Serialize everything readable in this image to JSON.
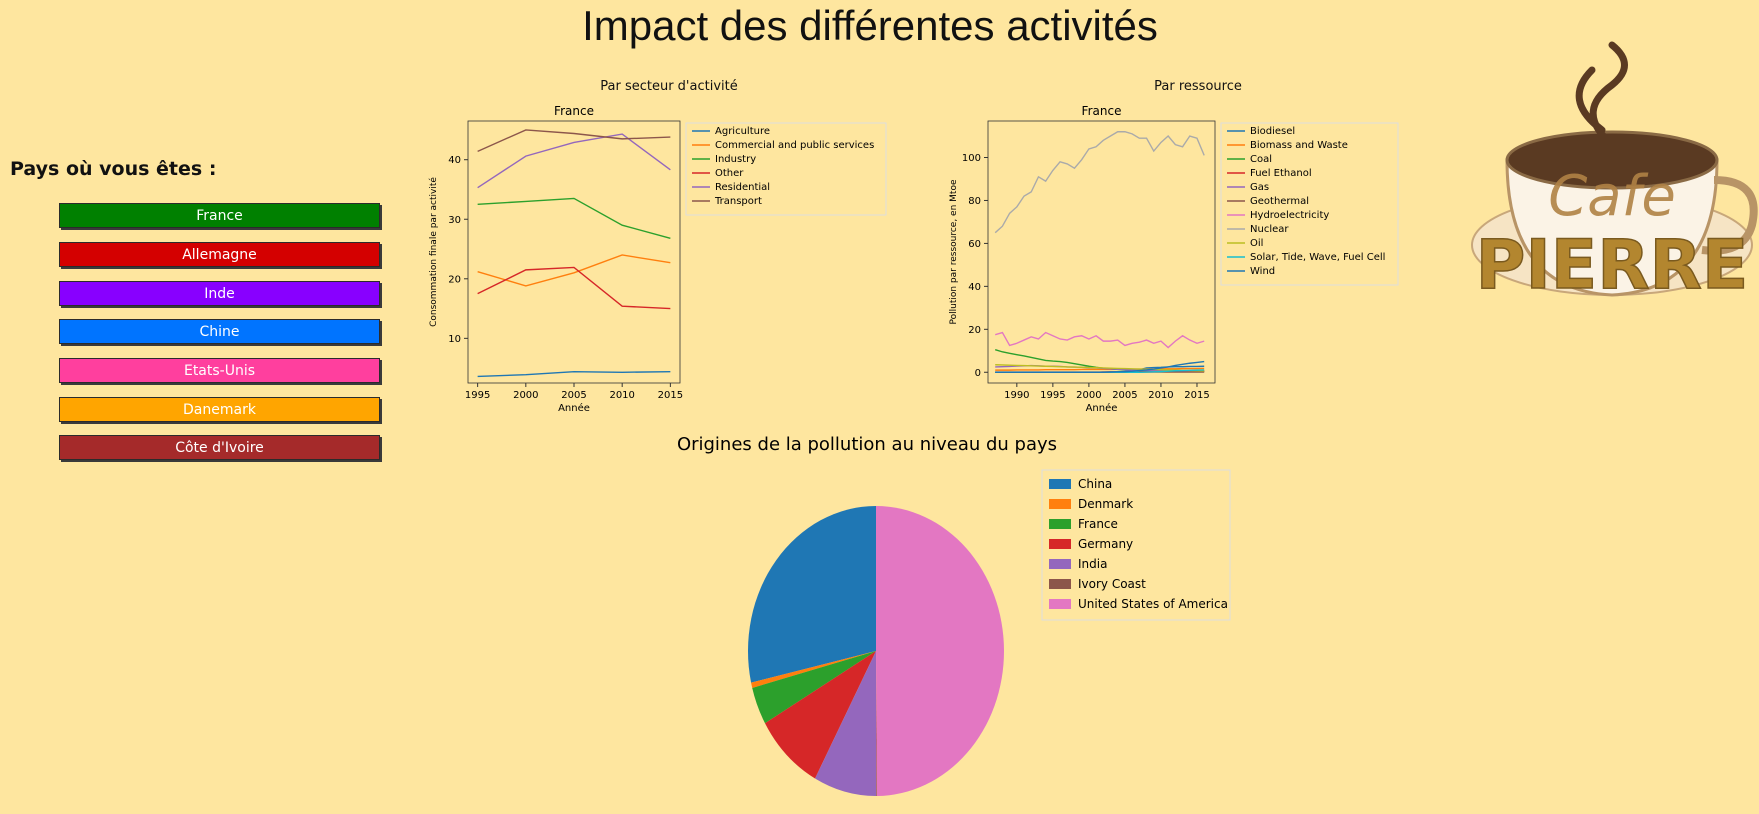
{
  "header": {
    "title": "Impact des différentes activités"
  },
  "sidebar": {
    "label": "Pays où vous êtes :",
    "buttons": [
      {
        "label": "France",
        "color": "#008000"
      },
      {
        "label": "Allemagne",
        "color": "#d40000"
      },
      {
        "label": "Inde",
        "color": "#8800ff"
      },
      {
        "label": "Chine",
        "color": "#0074ff"
      },
      {
        "label": "Etats-Unis",
        "color": "#ff3f9e"
      },
      {
        "label": "Danemark",
        "color": "#ffa500"
      },
      {
        "label": "Côte d'Ivoire",
        "color": "#a52a2a"
      }
    ]
  },
  "panels": {
    "sector_title": "Par secteur d'activité",
    "resource_title": "Par ressource"
  },
  "logo": {
    "text_top": "Cafe",
    "text_bottom": "PIERRE"
  },
  "chart_data": [
    {
      "type": "line",
      "title": "France",
      "xlabel": "Année",
      "ylabel": "Consommation finale par activité",
      "x": [
        1995,
        2000,
        2005,
        2010,
        2015
      ],
      "xlim": [
        1994,
        2016
      ],
      "ylim": [
        2.5,
        46.5
      ],
      "xticks": [
        1995,
        2000,
        2005,
        2010,
        2015
      ],
      "yticks": [
        10,
        20,
        30,
        40
      ],
      "legend": "right-outside",
      "series": [
        {
          "name": "Agriculture",
          "color": "#1f77b4",
          "values": [
            3.6,
            3.9,
            4.4,
            4.3,
            4.4
          ]
        },
        {
          "name": "Commercial and public services",
          "color": "#ff7f0e",
          "values": [
            21.2,
            18.8,
            21.0,
            24.0,
            22.7
          ]
        },
        {
          "name": "Industry",
          "color": "#2ca02c",
          "values": [
            32.5,
            33.0,
            33.5,
            29.0,
            26.8
          ]
        },
        {
          "name": "Other",
          "color": "#d62728",
          "values": [
            17.5,
            21.5,
            21.9,
            15.4,
            15.0
          ]
        },
        {
          "name": "Residential",
          "color": "#9467bd",
          "values": [
            35.3,
            40.6,
            42.9,
            44.3,
            38.3
          ]
        },
        {
          "name": "Transport",
          "color": "#8c564b",
          "values": [
            41.4,
            45.0,
            44.4,
            43.5,
            43.8
          ]
        }
      ]
    },
    {
      "type": "line",
      "title": "France",
      "xlabel": "Année",
      "ylabel": "Pollution par ressource, en Mtoe",
      "x": [
        1987,
        1988,
        1989,
        1990,
        1991,
        1992,
        1993,
        1994,
        1995,
        1996,
        1997,
        1998,
        1999,
        2000,
        2001,
        2002,
        2003,
        2004,
        2005,
        2006,
        2007,
        2008,
        2009,
        2010,
        2011,
        2012,
        2013,
        2014,
        2015,
        2016
      ],
      "xlim": [
        1986,
        2017.5
      ],
      "ylim": [
        -5,
        117
      ],
      "xticks": [
        1990,
        1995,
        2000,
        2005,
        2010,
        2015
      ],
      "yticks": [
        0,
        20,
        40,
        60,
        80,
        100
      ],
      "legend": "right-outside",
      "series": [
        {
          "name": "Biodiesel",
          "color": "#1f77b4",
          "values": [
            0,
            0,
            0,
            0,
            0,
            0,
            0,
            0,
            0,
            0,
            0,
            0,
            0,
            0,
            0,
            0.1,
            0.2,
            0.2,
            0.4,
            0.6,
            1.2,
            2.0,
            2.2,
            2.3,
            2.5,
            2.6,
            2.6,
            2.7,
            2.7,
            2.8
          ]
        },
        {
          "name": "Biomass and Waste",
          "color": "#ff7f0e",
          "values": [
            1.0,
            1.0,
            1.0,
            1.1,
            1.1,
            1.1,
            1.1,
            1.2,
            1.2,
            1.2,
            1.2,
            1.2,
            1.3,
            1.3,
            1.3,
            1.3,
            1.3,
            1.4,
            1.4,
            1.4,
            1.5,
            1.5,
            1.5,
            1.6,
            1.6,
            1.6,
            1.7,
            1.7,
            1.7,
            1.8
          ]
        },
        {
          "name": "Coal",
          "color": "#2ca02c",
          "values": [
            10.5,
            9.5,
            8.8,
            8.2,
            7.6,
            6.9,
            6.2,
            5.5,
            5.2,
            5.0,
            4.6,
            4.0,
            3.4,
            2.8,
            2.3,
            1.9,
            1.6,
            1.3,
            1.1,
            1.0,
            0.9,
            0.8,
            0.7,
            0.7,
            0.6,
            0.6,
            0.5,
            0.5,
            0.5,
            0.4
          ]
        },
        {
          "name": "Fuel Ethanol",
          "color": "#d62728",
          "values": [
            0,
            0,
            0,
            0,
            0,
            0,
            0,
            0,
            0,
            0,
            0,
            0,
            0,
            0,
            0,
            0.1,
            0.1,
            0.1,
            0.2,
            0.3,
            0.4,
            0.5,
            0.5,
            0.5,
            0.5,
            0.5,
            0.5,
            0.5,
            0.5,
            0.5
          ]
        },
        {
          "name": "Gas",
          "color": "#9467bd",
          "values": [
            2.5,
            2.6,
            2.7,
            2.9,
            3.0,
            3.1,
            3.0,
            2.8,
            2.8,
            2.7,
            2.5,
            2.4,
            2.3,
            2.1,
            2.0,
            1.8,
            1.6,
            1.4,
            1.2,
            1.0,
            0.9,
            0.8,
            0.7,
            0.7,
            0.6,
            0.6,
            0.6,
            0.6,
            0.6,
            0.6
          ]
        },
        {
          "name": "Geothermal",
          "color": "#8c564b",
          "values": [
            0.1,
            0.1,
            0.1,
            0.1,
            0.1,
            0.1,
            0.1,
            0.1,
            0.1,
            0.1,
            0.1,
            0.1,
            0.1,
            0.1,
            0.1,
            0.1,
            0.1,
            0.1,
            0.1,
            0.1,
            0.1,
            0.1,
            0.1,
            0.1,
            0.1,
            0.1,
            0.1,
            0.1,
            0.1,
            0.1
          ]
        },
        {
          "name": "Hydroelectricity",
          "color": "#e377c2",
          "values": [
            17.5,
            18.5,
            12.5,
            13.5,
            15.0,
            16.5,
            15.5,
            18.5,
            17.0,
            15.5,
            15.0,
            16.5,
            17.0,
            15.5,
            17.0,
            14.5,
            14.5,
            15.0,
            12.5,
            13.5,
            14.0,
            15.0,
            13.5,
            14.5,
            11.5,
            14.5,
            17.0,
            15.0,
            13.5,
            14.5
          ]
        },
        {
          "name": "Nuclear",
          "color": "#aaaaaa",
          "values": [
            65,
            68,
            74,
            77,
            82,
            84,
            91,
            89,
            94,
            98,
            97,
            95,
            99,
            104,
            105,
            108,
            110,
            112,
            112,
            111,
            109,
            109,
            103,
            107,
            110,
            106,
            105,
            110,
            109,
            101
          ]
        },
        {
          "name": "Oil",
          "color": "#bcbd22",
          "values": [
            3.5,
            3.4,
            3.3,
            3.2,
            3.1,
            3.0,
            2.9,
            2.8,
            2.7,
            2.6,
            2.5,
            2.4,
            2.3,
            2.2,
            2.1,
            2.0,
            1.9,
            1.8,
            1.7,
            1.6,
            1.5,
            1.4,
            1.3,
            1.2,
            1.1,
            1.0,
            0.9,
            0.8,
            0.7,
            0.6
          ]
        },
        {
          "name": "Solar, Tide, Wave, Fuel Cell",
          "color": "#17becf",
          "values": [
            0,
            0,
            0,
            0,
            0,
            0,
            0,
            0,
            0,
            0,
            0,
            0,
            0,
            0,
            0,
            0,
            0,
            0,
            0,
            0,
            0,
            0.1,
            0.2,
            0.3,
            0.5,
            0.7,
            0.8,
            0.9,
            1.0,
            1.1
          ]
        },
        {
          "name": "Wind",
          "color": "#1f77b4",
          "values": [
            0,
            0,
            0,
            0,
            0,
            0,
            0,
            0,
            0,
            0,
            0,
            0,
            0,
            0,
            0,
            0,
            0.1,
            0.2,
            0.3,
            0.5,
            0.8,
            1.1,
            1.5,
            2.0,
            2.5,
            3.2,
            3.7,
            4.2,
            4.6,
            5.0
          ]
        }
      ]
    },
    {
      "type": "pie",
      "title": "Origines de la pollution au niveau du pays",
      "legend": "right",
      "start_angle_deg": 90,
      "direction": "counterclockwise",
      "slices": [
        {
          "label": "China",
          "value": 28.5,
          "color": "#1f77b4"
        },
        {
          "label": "Denmark",
          "value": 0.6,
          "color": "#ff7f0e"
        },
        {
          "label": "France",
          "value": 4.2,
          "color": "#2ca02c"
        },
        {
          "label": "Germany",
          "value": 8.8,
          "color": "#d62728"
        },
        {
          "label": "India",
          "value": 7.9,
          "color": "#9467bd"
        },
        {
          "label": "Ivory Coast",
          "value": 0.1,
          "color": "#8c564b"
        },
        {
          "label": "United States of America",
          "value": 49.9,
          "color": "#e377c2"
        }
      ]
    }
  ]
}
